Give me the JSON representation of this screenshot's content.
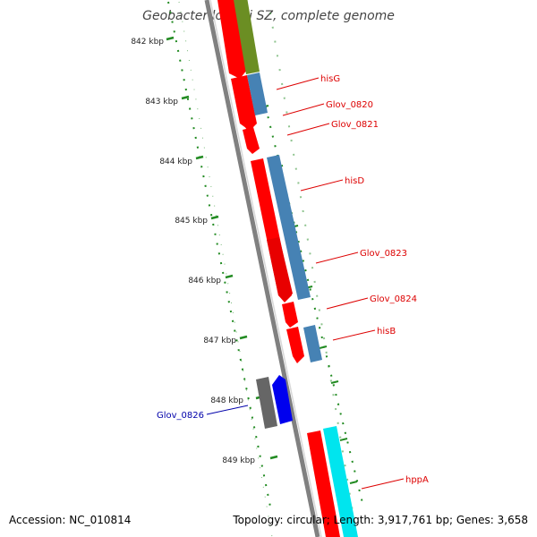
{
  "title": "Geobacter lovleyi SZ, complete genome",
  "ticks": [
    "842 kbp",
    "843 kbp",
    "844 kbp",
    "845 kbp",
    "846 kbp",
    "847 kbp",
    "848 kbp",
    "849 kbp"
  ],
  "gene_labels": [
    {
      "text": "hisG",
      "color": "#dd0000"
    },
    {
      "text": "Glov_0820",
      "color": "#dd0000"
    },
    {
      "text": "Glov_0821",
      "color": "#dd0000"
    },
    {
      "text": "hisD",
      "color": "#dd0000"
    },
    {
      "text": "Glov_0823",
      "color": "#dd0000"
    },
    {
      "text": "Glov_0824",
      "color": "#dd0000"
    },
    {
      "text": "hisB",
      "color": "#dd0000"
    },
    {
      "text": "Glov_0826",
      "color": "#0000aa"
    },
    {
      "text": "hppA",
      "color": "#dd0000"
    }
  ],
  "footer": {
    "accession": "Accession: NC_010814",
    "topology": "Topology: circular; Length: 3,917,761 bp; Genes: 3,658"
  },
  "colors": {
    "cds_forward": "#ff0000",
    "cds_reverse": "#0000ee",
    "pseudo": "#666666",
    "blast_blue": "#4682b4",
    "olive": "#6b8e23",
    "cyan": "#00e5ee",
    "tick": "#228b22",
    "backbone": "#808080"
  }
}
